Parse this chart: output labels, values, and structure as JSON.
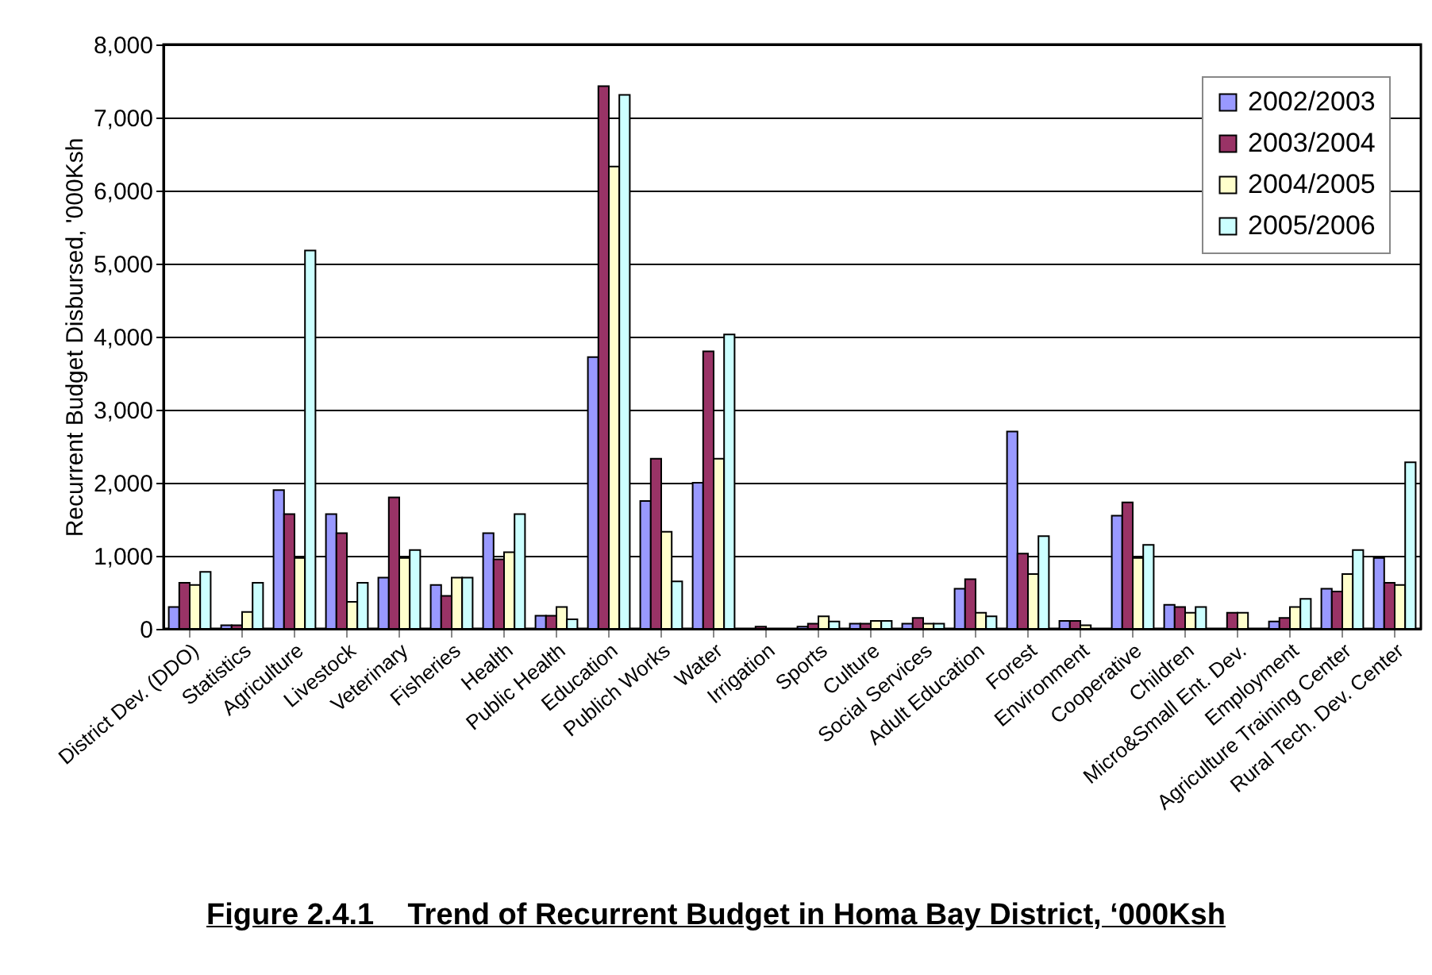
{
  "chart_data": {
    "type": "bar",
    "title": "Figure 2.4.1    Trend of Recurrent Budget in Homa Bay District, ‘000Ksh",
    "ylabel": "Recurrent Budget Disbursed, '000Ksh",
    "categories": [
      "District Dev. (DDO)",
      "Statistics",
      "Agriculture",
      "Livestock",
      "Veterinary",
      "Fisheries",
      "Health",
      "Public Health",
      "Education",
      "Publich Works",
      "Water",
      "Irrigation",
      "Sports",
      "Culture",
      "Social Services",
      "Adult Education",
      "Forest",
      "Environment",
      "Cooperative",
      "Children",
      "Micro&Small Ent. Dev.",
      "Employment",
      "Agriculture Training Center",
      "Rural Tech. Dev. Center"
    ],
    "series": [
      {
        "name": "2002/2003",
        "color": "#9999ff",
        "values": [
          300,
          50,
          1900,
          1570,
          700,
          600,
          1310,
          180,
          3720,
          1750,
          2000,
          null,
          30,
          70,
          70,
          550,
          2700,
          110,
          1550,
          330,
          null,
          100,
          550,
          970
        ]
      },
      {
        "name": "2003/2004",
        "color": "#993366",
        "values": [
          630,
          50,
          1570,
          1310,
          1800,
          450,
          950,
          180,
          7430,
          2330,
          3800,
          30,
          70,
          70,
          150,
          680,
          1030,
          110,
          1730,
          300,
          220,
          150,
          510,
          630
        ]
      },
      {
        "name": "2004/2005",
        "color": "#ffffcc",
        "values": [
          600,
          230,
          970,
          370,
          970,
          700,
          1050,
          300,
          6330,
          1330,
          2330,
          null,
          170,
          110,
          70,
          220,
          750,
          50,
          970,
          220,
          220,
          300,
          750,
          600
        ]
      },
      {
        "name": "2005/2006",
        "color": "#ccffff",
        "values": [
          780,
          630,
          5180,
          630,
          1080,
          700,
          1570,
          130,
          7310,
          650,
          4030,
          null,
          100,
          110,
          70,
          170,
          1270,
          null,
          1150,
          300,
          null,
          410,
          1080,
          2280
        ]
      }
    ],
    "ylim": [
      0,
      8000
    ],
    "yticks": [
      0,
      {
        "value": 1000,
        "label": "1,000"
      },
      {
        "value": 2000,
        "label": "2,000"
      },
      {
        "value": 3000,
        "label": "3,000"
      },
      {
        "value": 4000,
        "label": "4,000"
      },
      {
        "value": 5000,
        "label": "5,000"
      },
      {
        "value": 6000,
        "label": "6,000"
      },
      {
        "value": 7000,
        "label": "7,000"
      },
      {
        "value": 8000,
        "label": "8,000"
      }
    ],
    "grid": "y",
    "legend": "top right"
  }
}
